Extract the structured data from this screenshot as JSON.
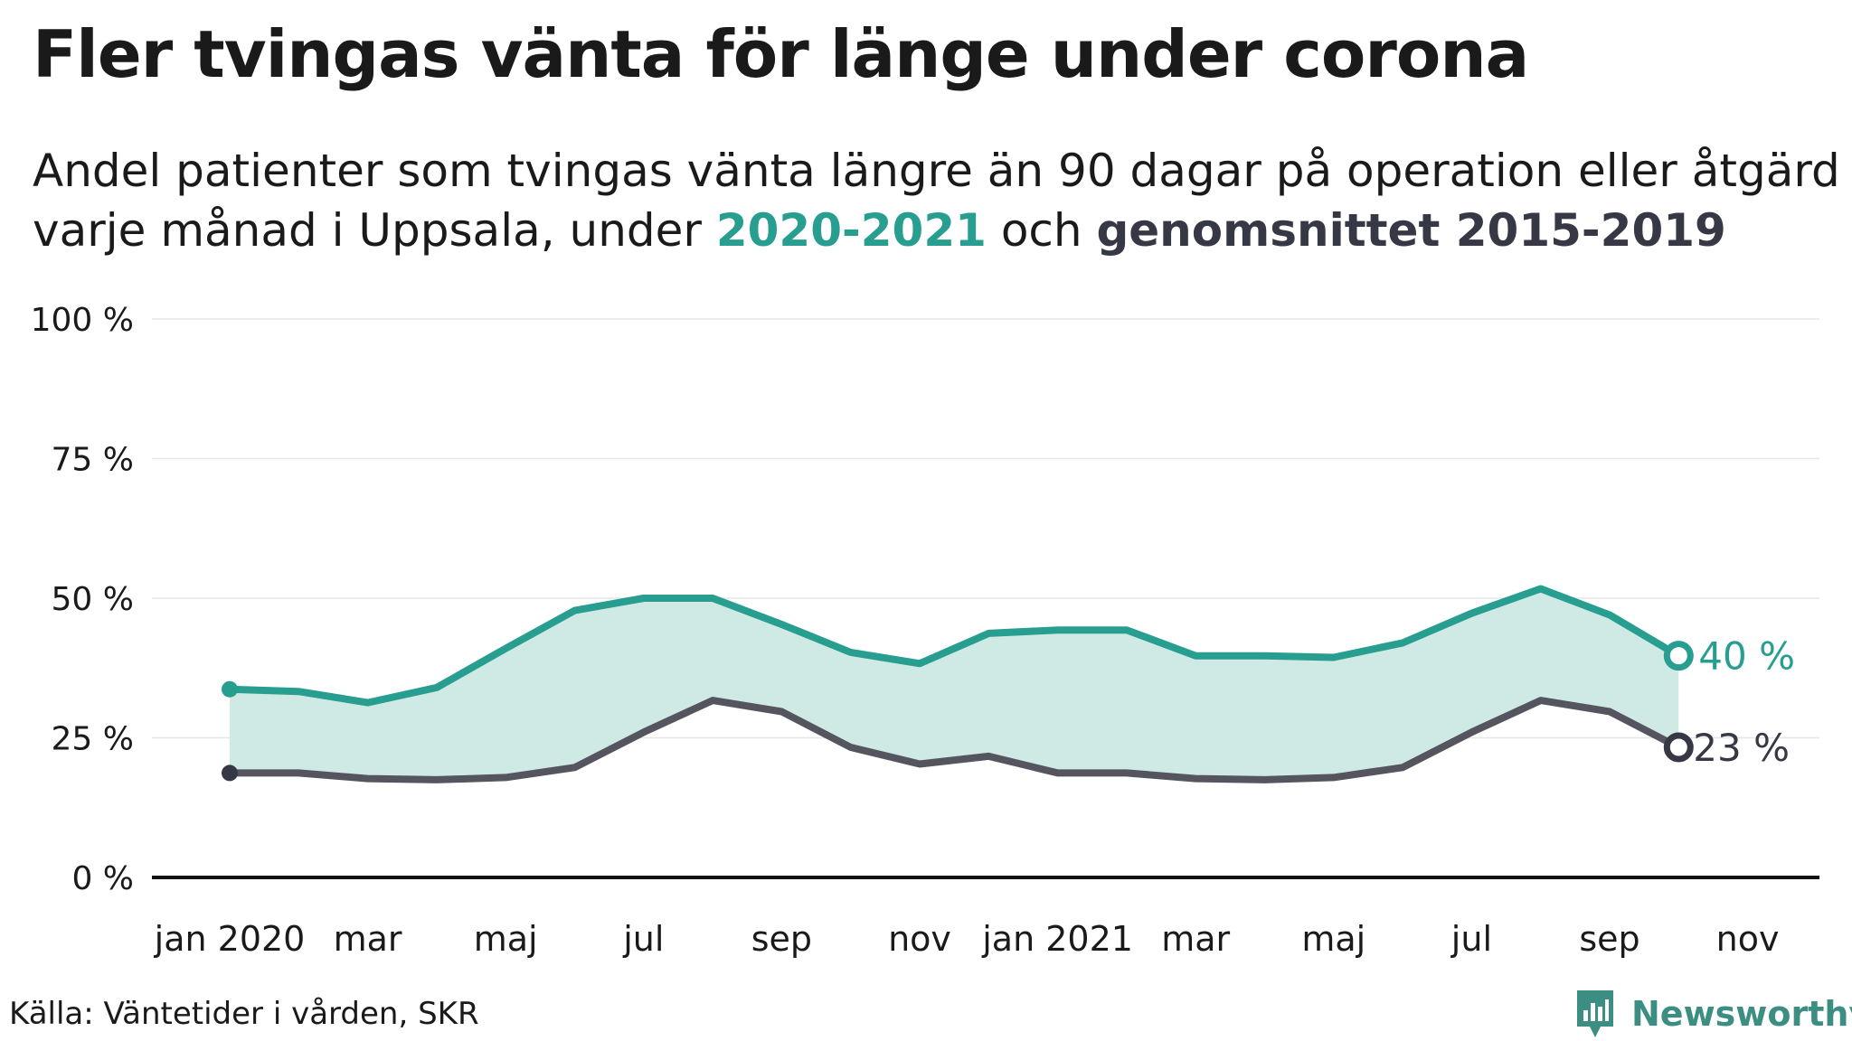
{
  "header": {
    "title": "Fler tvingas vänta för länge under corona",
    "subtitle_line1": "Andel patienter som tvingas vänta längre än 90 dagar på operation eller åtgärd",
    "subtitle_line2_pre": "varje månad i Uppsala, under ",
    "subtitle_line2_hl1": "2020-2021",
    "subtitle_line2_mid": " och ",
    "subtitle_line2_hl2": "genomsnittet 2015-2019"
  },
  "footer": {
    "source": "Källa: Väntetider i vården, SKR",
    "brand": "Newsworthy"
  },
  "colors": {
    "series_2020": "#279e8f",
    "series_avg": "#555560",
    "avg_text": "#373845",
    "band_fill": "#cfe9e5",
    "grid": "#e6e6e6",
    "axis": "#111111"
  },
  "chart_data": {
    "type": "line",
    "x": [
      "2020-01",
      "2020-02",
      "2020-03",
      "2020-04",
      "2020-05",
      "2020-06",
      "2020-07",
      "2020-08",
      "2020-09",
      "2020-10",
      "2020-11",
      "2020-12",
      "2021-01",
      "2021-02",
      "2021-03",
      "2021-04",
      "2021-05",
      "2021-06",
      "2021-07",
      "2021-08",
      "2021-09",
      "2021-10"
    ],
    "series": [
      {
        "name": "2020-2021",
        "values": [
          33.7,
          33.3,
          31.3,
          34.0,
          41.0,
          47.8,
          50.0,
          50.0,
          45.3,
          40.3,
          38.3,
          43.7,
          44.3,
          44.3,
          39.7,
          39.7,
          39.4,
          42.0,
          47.3,
          51.7,
          47.0,
          39.7
        ]
      },
      {
        "name": "genomsnittet 2015-2019",
        "values": [
          18.7,
          18.7,
          17.7,
          17.5,
          17.9,
          19.7,
          26.0,
          31.7,
          29.7,
          23.3,
          20.3,
          21.7,
          18.7,
          18.7,
          17.7,
          17.5,
          17.9,
          19.7,
          26.0,
          31.7,
          29.7,
          23.3
        ]
      }
    ],
    "end_labels": [
      "40 %",
      "23 %"
    ],
    "y_ticks": [
      "0 %",
      "25 %",
      "50 %",
      "75 %",
      "100 %"
    ],
    "y_tick_values": [
      0,
      25,
      50,
      75,
      100
    ],
    "x_tick_labels": [
      "jan 2020",
      "mar",
      "maj",
      "jul",
      "sep",
      "nov",
      "jan 2021",
      "mar",
      "maj",
      "jul",
      "sep",
      "nov"
    ],
    "x_tick_months": [
      "2020-01",
      "2020-03",
      "2020-05",
      "2020-07",
      "2020-09",
      "2020-11",
      "2021-01",
      "2021-03",
      "2021-05",
      "2021-07",
      "2021-09",
      "2021-11"
    ],
    "ylim": [
      0,
      100
    ],
    "grid": true
  }
}
